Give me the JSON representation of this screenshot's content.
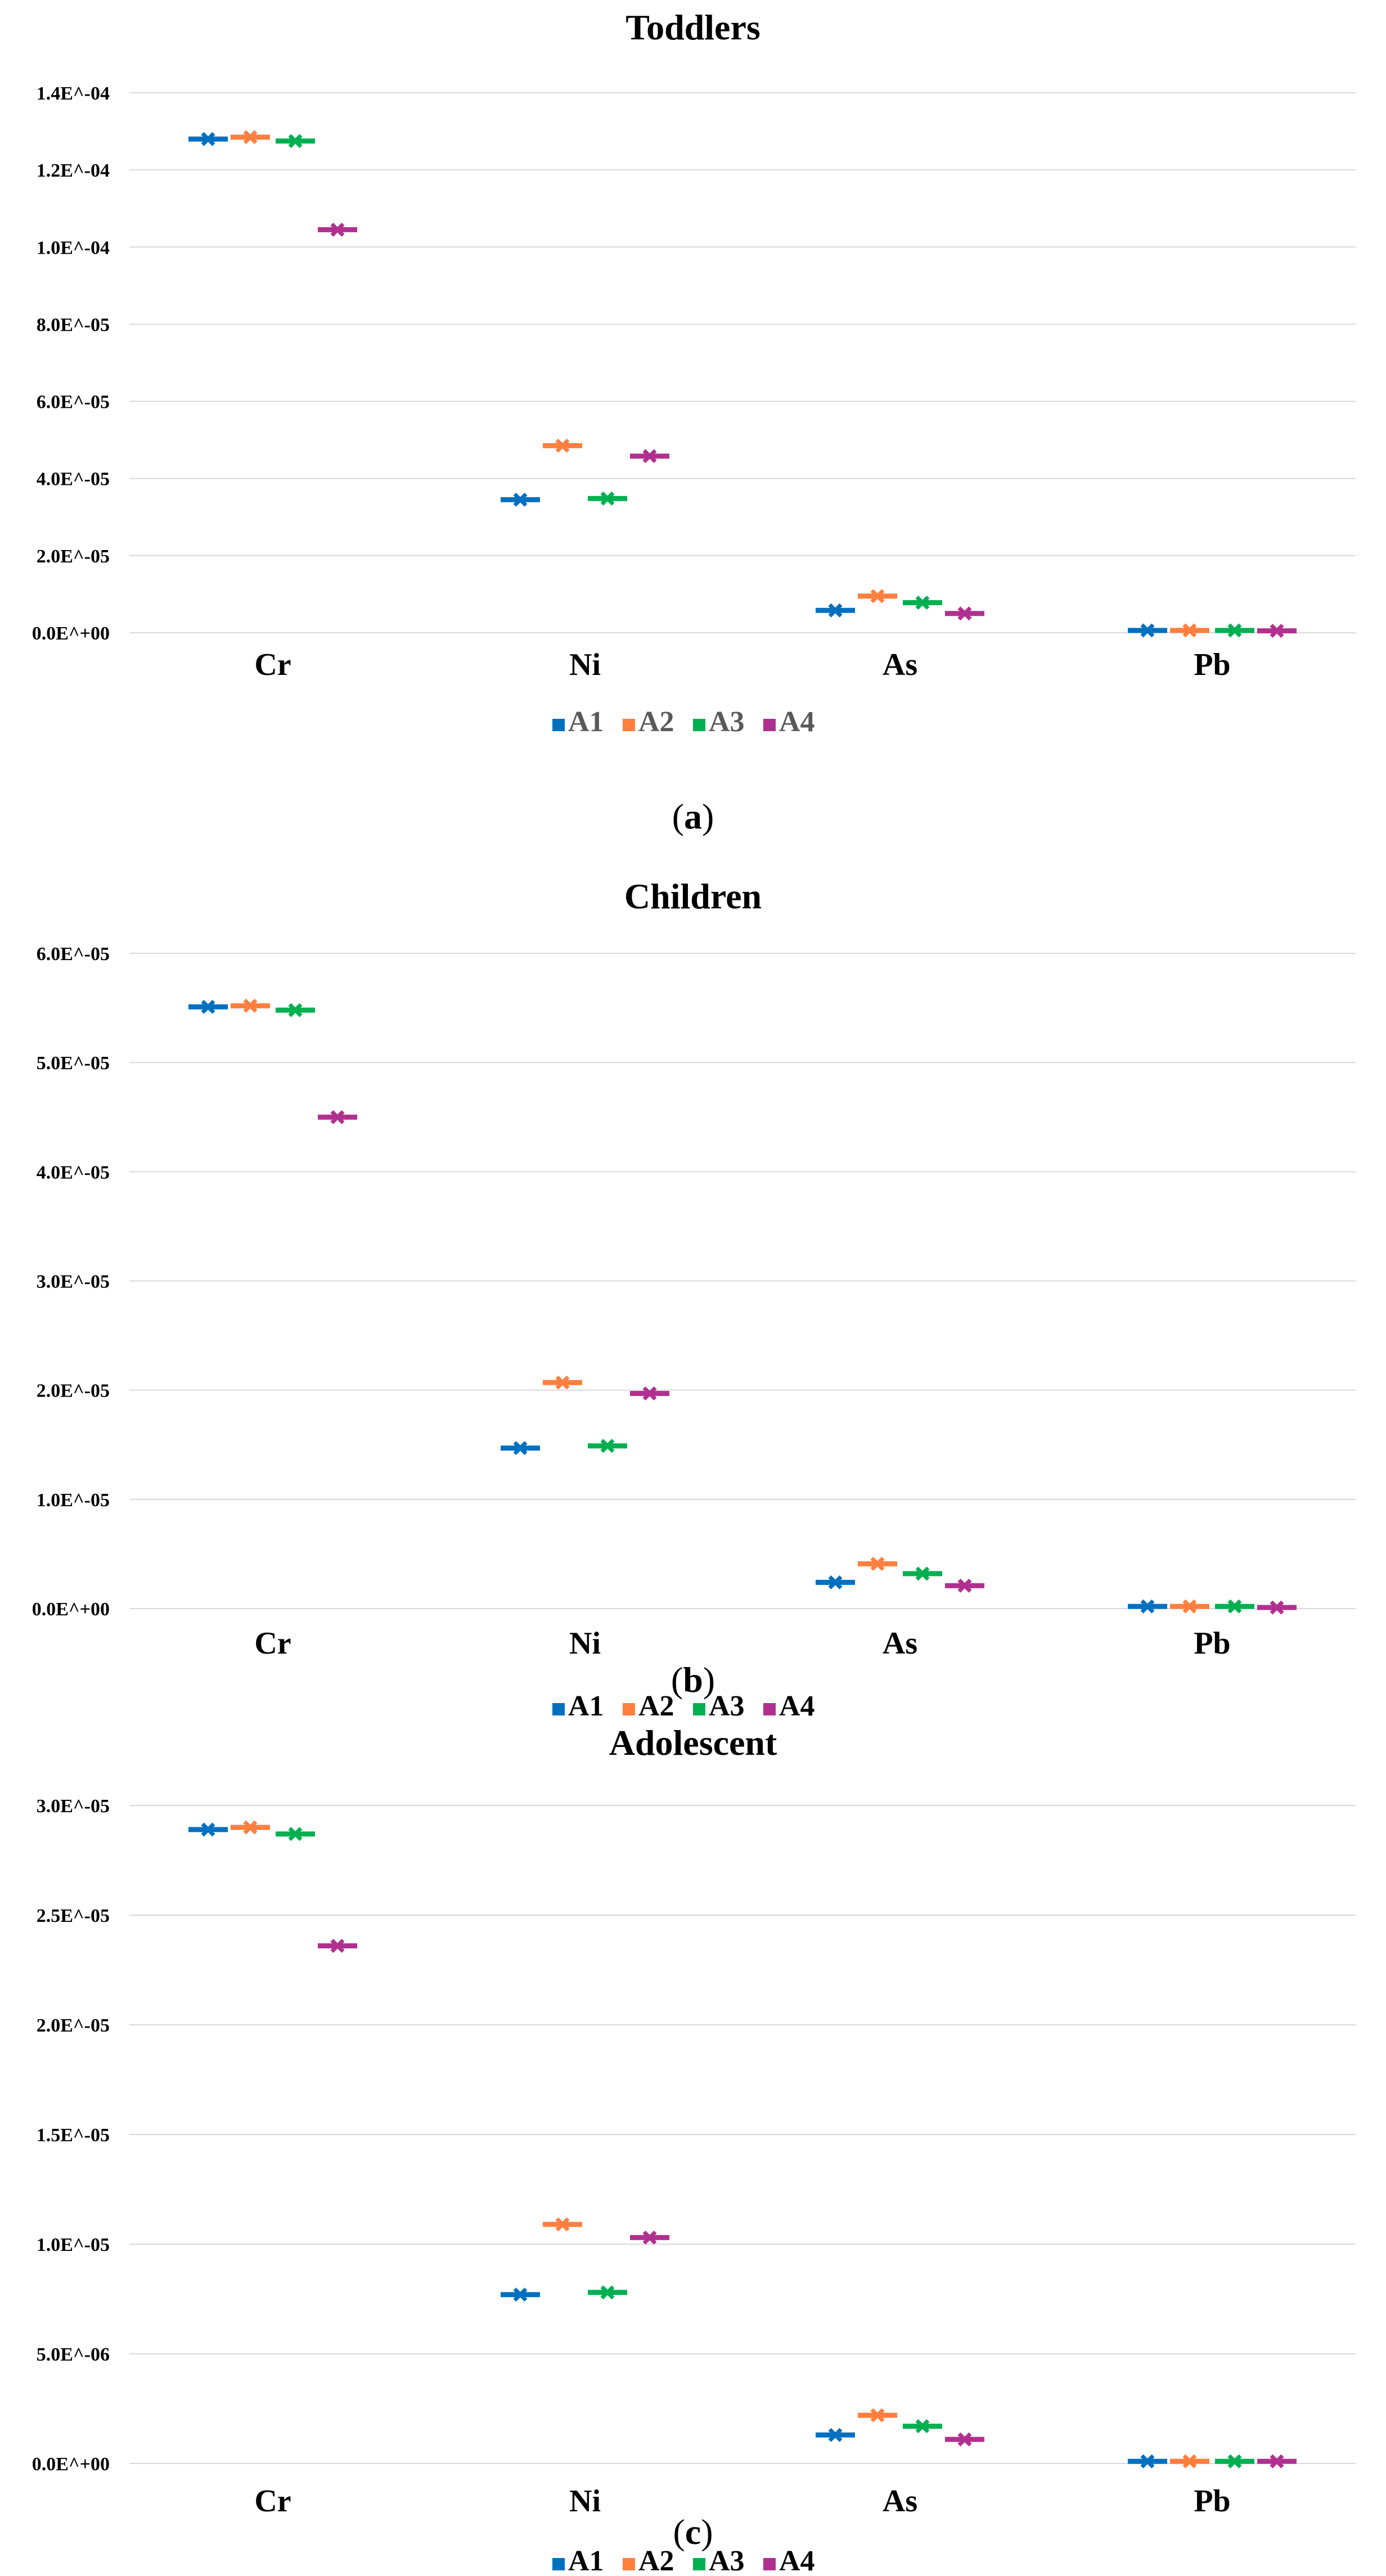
{
  "colors": {
    "A1": "#0070c0",
    "A2": "#ff7f3f",
    "A3": "#00b050",
    "A4": "#b03090",
    "grid": "#d9d9d9"
  },
  "chart_data": [
    {
      "type": "scatter",
      "title": "Toddlers",
      "categories": [
        "Cr",
        "Ni",
        "As",
        "Pb"
      ],
      "yticks": [
        "0.0E^+00",
        "2.0E^-05",
        "4.0E^-05",
        "6.0E^-05",
        "8.0E^-05",
        "1.0E^-04",
        "1.2E^-04",
        "1.4E^-04"
      ],
      "ylim": [
        0,
        0.00014
      ],
      "series": [
        {
          "name": "A1",
          "values": [
            0.000128,
            3.45e-05,
            5.8e-06,
            6e-07
          ]
        },
        {
          "name": "A2",
          "values": [
            0.0001285,
            4.85e-05,
            9.5e-06,
            6e-07
          ]
        },
        {
          "name": "A3",
          "values": [
            0.0001275,
            3.48e-05,
            7.8e-06,
            6e-07
          ]
        },
        {
          "name": "A4",
          "values": [
            0.0001045,
            4.58e-05,
            5e-06,
            5e-07
          ]
        }
      ],
      "legend": [
        "A1",
        "A2",
        "A3",
        "A4"
      ],
      "caption_letter": "a"
    },
    {
      "type": "scatter",
      "title": "Children",
      "categories": [
        "Cr",
        "Ni",
        "As",
        "Pb"
      ],
      "yticks": [
        "0.0E^+00",
        "1.0E^-05",
        "2.0E^-05",
        "3.0E^-05",
        "4.0E^-05",
        "5.0E^-05",
        "6.0E^-05"
      ],
      "ylim": [
        0,
        6e-05
      ],
      "series": [
        {
          "name": "A1",
          "values": [
            5.51e-05,
            1.47e-05,
            2.4e-06,
            2e-07
          ]
        },
        {
          "name": "A2",
          "values": [
            5.52e-05,
            2.07e-05,
            4.1e-06,
            2e-07
          ]
        },
        {
          "name": "A3",
          "values": [
            5.48e-05,
            1.49e-05,
            3.2e-06,
            2e-07
          ]
        },
        {
          "name": "A4",
          "values": [
            4.5e-05,
            1.97e-05,
            2.1e-06,
            1e-07
          ]
        }
      ],
      "legend": [
        "A1",
        "A2",
        "A3",
        "A4"
      ],
      "caption_letter": "b"
    },
    {
      "type": "scatter",
      "title": "Adolescent",
      "categories": [
        "Cr",
        "Ni",
        "As",
        "Pb"
      ],
      "yticks": [
        "0.0E^+00",
        "5.0E^-06",
        "1.0E^-05",
        "1.5E^-05",
        "2.0E^-05",
        "2.5E^-05",
        "3.0E^-05"
      ],
      "ylim": [
        0,
        3e-05
      ],
      "series": [
        {
          "name": "A1",
          "values": [
            2.89e-05,
            7.7e-06,
            1.3e-06,
            1e-07
          ]
        },
        {
          "name": "A2",
          "values": [
            2.9e-05,
            1.09e-05,
            2.2e-06,
            1e-07
          ]
        },
        {
          "name": "A3",
          "values": [
            2.87e-05,
            7.8e-06,
            1.7e-06,
            1e-07
          ]
        },
        {
          "name": "A4",
          "values": [
            2.36e-05,
            1.03e-05,
            1.1e-06,
            1e-07
          ]
        }
      ],
      "legend": [
        "A1",
        "A2",
        "A3",
        "A4"
      ],
      "caption_letter": "c"
    }
  ]
}
